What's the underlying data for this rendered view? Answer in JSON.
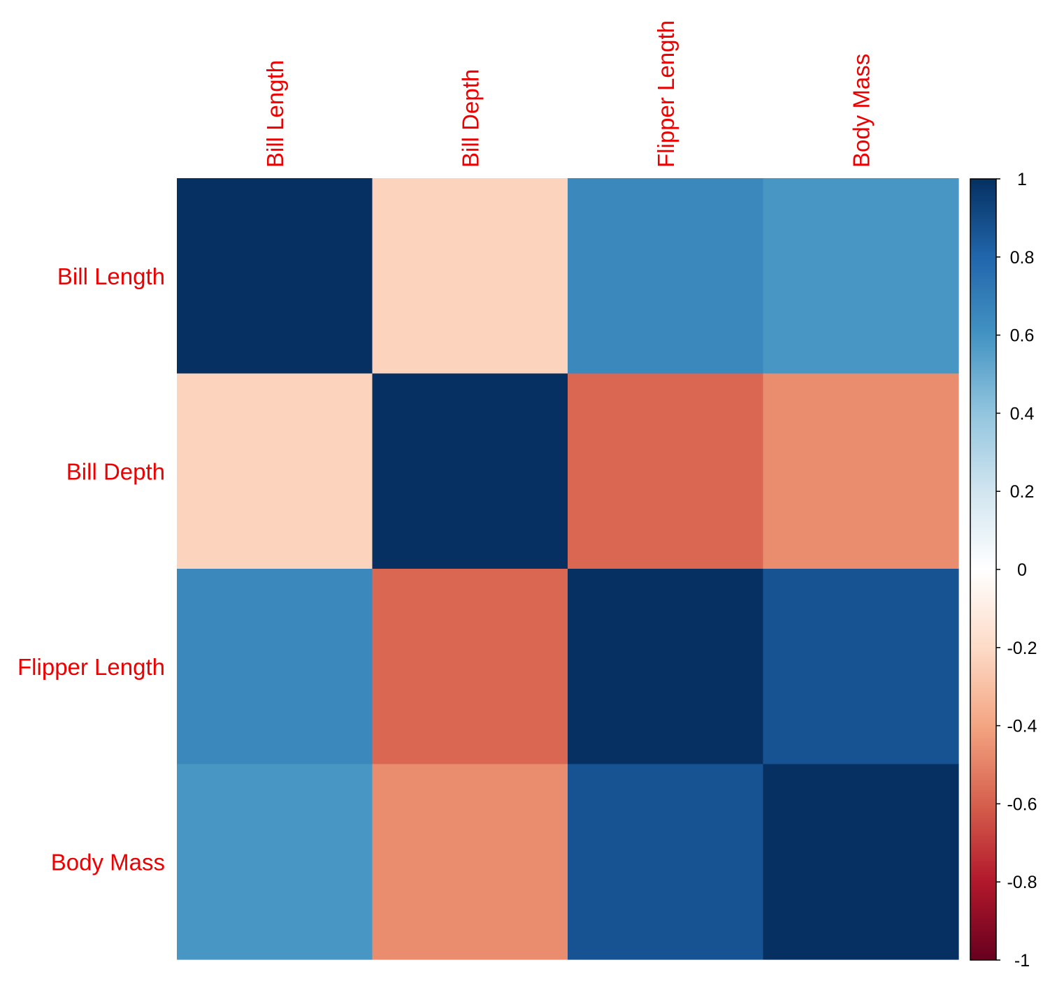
{
  "chart_data": {
    "type": "heatmap",
    "title": "",
    "rows": [
      "Bill Length",
      "Bill Depth",
      "Flipper Length",
      "Body Mass"
    ],
    "columns": [
      "Bill Length",
      "Bill Depth",
      "Flipper Length",
      "Body Mass"
    ],
    "values": [
      [
        1.0,
        -0.23,
        0.65,
        0.59
      ],
      [
        -0.23,
        1.0,
        -0.58,
        -0.47
      ],
      [
        0.65,
        -0.58,
        1.0,
        0.87
      ],
      [
        0.59,
        -0.47,
        0.87,
        1.0
      ]
    ],
    "color_scale": {
      "range": [
        -1,
        1
      ],
      "ticks": [
        1,
        0.8,
        0.6,
        0.4,
        0.2,
        0,
        -0.2,
        -0.4,
        -0.6,
        -0.8,
        -1
      ],
      "tick_labels": [
        "1",
        "0.8",
        "0.6",
        "0.4",
        "0.2",
        "0",
        "-0.2",
        "-0.4",
        "-0.6",
        "-0.8",
        "-1"
      ],
      "stops": [
        "#67001f",
        "#b2182b",
        "#d6604d",
        "#f4a582",
        "#fddbc7",
        "#ffffff",
        "#d1e5f0",
        "#92c5de",
        "#4393c3",
        "#2166ac",
        "#053061"
      ]
    },
    "label_color": "#ee0000",
    "legend": "right"
  }
}
